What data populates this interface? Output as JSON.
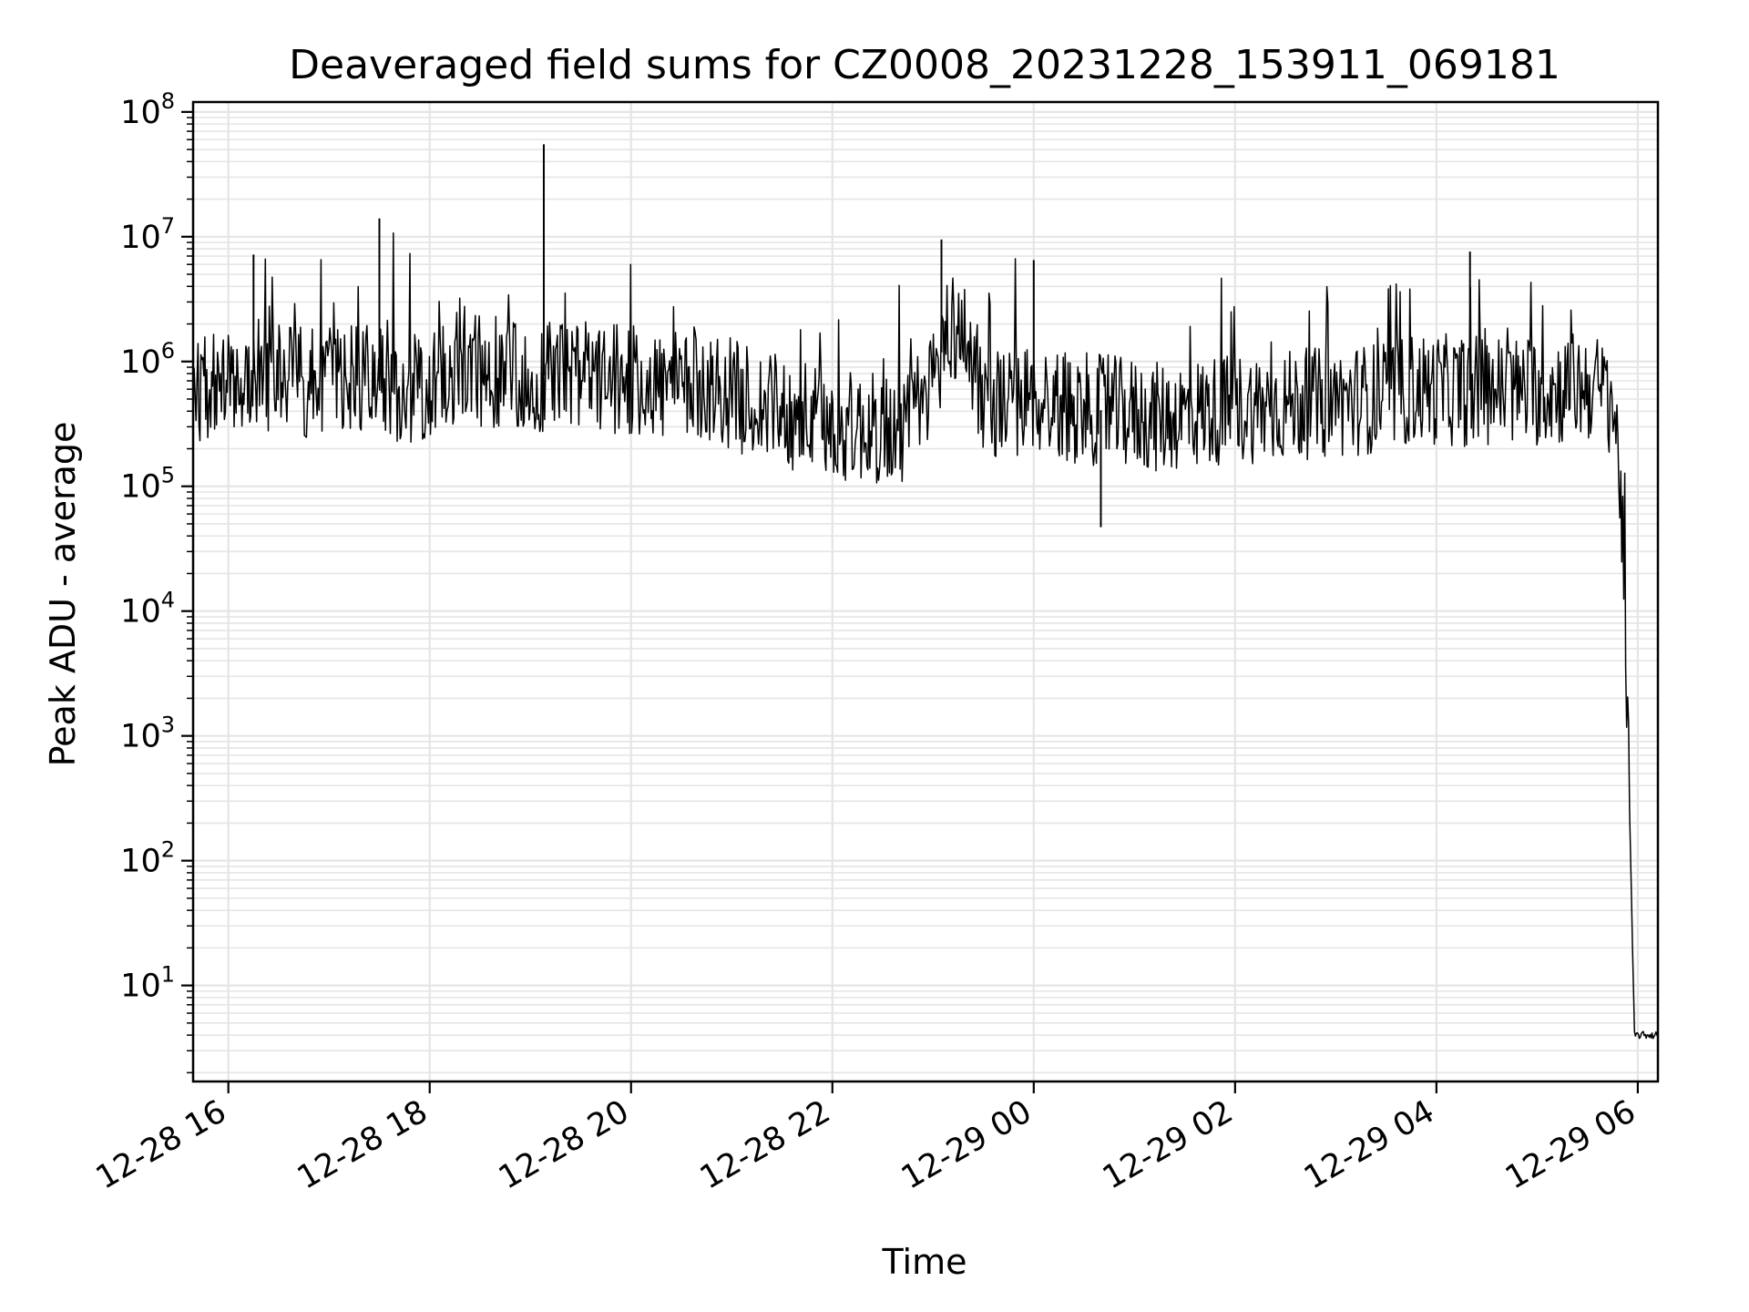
{
  "chart_data": {
    "type": "line",
    "title": "Deaveraged field sums for CZ0008_20231228_153911_069181",
    "xlabel": "Time",
    "ylabel": "Peak ADU - average",
    "yscale": "log",
    "grid": true,
    "line_color": "#000000",
    "grid_color": "#e5e5e5",
    "x_ticks": [
      "12-28 16",
      "12-28 18",
      "12-28 20",
      "12-28 22",
      "12-29 00",
      "12-29 02",
      "12-29 04",
      "12-29 06"
    ],
    "y_ticks": [
      {
        "base": "10",
        "exp": "1"
      },
      {
        "base": "10",
        "exp": "2"
      },
      {
        "base": "10",
        "exp": "3"
      },
      {
        "base": "10",
        "exp": "4"
      },
      {
        "base": "10",
        "exp": "5"
      },
      {
        "base": "10",
        "exp": "6"
      },
      {
        "base": "10",
        "exp": "7"
      },
      {
        "base": "10",
        "exp": "8"
      }
    ],
    "xlim": [
      "2023-12-28 15:39",
      "2023-12-29 06:12"
    ],
    "ylim": [
      1.7,
      120000000
    ],
    "series": [
      {
        "x": [
          "2023-12-28 15:39",
          "2023-12-28 15:50",
          "2023-12-28 16:00",
          "2023-12-28 16:15",
          "2023-12-28 16:30",
          "2023-12-28 16:45",
          "2023-12-28 17:00",
          "2023-12-28 17:15",
          "2023-12-28 17:30",
          "2023-12-28 17:45",
          "2023-12-28 18:00",
          "2023-12-28 18:15",
          "2023-12-28 18:30",
          "2023-12-28 18:45",
          "2023-12-28 19:00",
          "2023-12-28 19:15",
          "2023-12-28 19:30",
          "2023-12-28 19:45",
          "2023-12-28 20:00",
          "2023-12-28 20:15",
          "2023-12-28 20:30",
          "2023-12-28 20:45",
          "2023-12-28 21:00",
          "2023-12-28 21:15",
          "2023-12-28 21:30",
          "2023-12-28 21:45",
          "2023-12-28 22:00",
          "2023-12-28 22:15",
          "2023-12-28 22:30",
          "2023-12-28 22:45",
          "2023-12-28 23:00",
          "2023-12-28 23:10",
          "2023-12-28 23:20",
          "2023-12-28 23:30",
          "2023-12-28 23:45",
          "2023-12-29 00:00",
          "2023-12-29 00:15",
          "2023-12-29 00:30",
          "2023-12-29 00:45",
          "2023-12-29 01:00",
          "2023-12-29 01:15",
          "2023-12-29 01:30",
          "2023-12-29 01:45",
          "2023-12-29 02:00",
          "2023-12-29 02:15",
          "2023-12-29 02:30",
          "2023-12-29 02:45",
          "2023-12-29 03:00",
          "2023-12-29 03:15",
          "2023-12-29 03:30",
          "2023-12-29 03:45",
          "2023-12-29 04:00",
          "2023-12-29 04:15",
          "2023-12-29 04:30",
          "2023-12-29 04:45",
          "2023-12-29 05:00",
          "2023-12-29 05:15",
          "2023-12-29 05:30",
          "2023-12-29 05:45",
          "2023-12-29 05:50",
          "2023-12-29 05:55",
          "2023-12-29 05:58",
          "2023-12-29 06:00",
          "2023-12-29 06:05",
          "2023-12-29 06:12"
        ],
        "values": [
          480000,
          700000,
          850000,
          800000,
          750000,
          700000,
          650000,
          750000,
          700000,
          600000,
          650000,
          900000,
          850000,
          800000,
          750000,
          800000,
          750000,
          700000,
          700000,
          650000,
          600000,
          650000,
          550000,
          450000,
          400000,
          350000,
          300000,
          300000,
          280000,
          300000,
          700000,
          2000000,
          1500000,
          500000,
          450000,
          500000,
          450000,
          420000,
          400000,
          380000,
          350000,
          380000,
          400000,
          420000,
          430000,
          450000,
          460000,
          470000,
          500000,
          520000,
          600000,
          600000,
          580000,
          600000,
          580000,
          580000,
          600000,
          650000,
          500000,
          100000,
          300,
          4,
          4,
          4,
          4
        ]
      }
    ],
    "annotations": [
      {
        "x": "2023-12-28 19:08",
        "value": 55000000
      },
      {
        "x": "2023-12-28 17:30",
        "value": 14000000
      },
      {
        "x": "2023-12-28 23:05",
        "value": 9500000
      },
      {
        "x": "2023-12-28 16:15",
        "value": 7200000
      },
      {
        "x": "2023-12-29 04:20",
        "value": 7600000
      },
      {
        "x": "2023-12-29 00:00",
        "value": 6500000
      },
      {
        "x": "2023-12-29 00:40",
        "value": 47000
      }
    ]
  }
}
